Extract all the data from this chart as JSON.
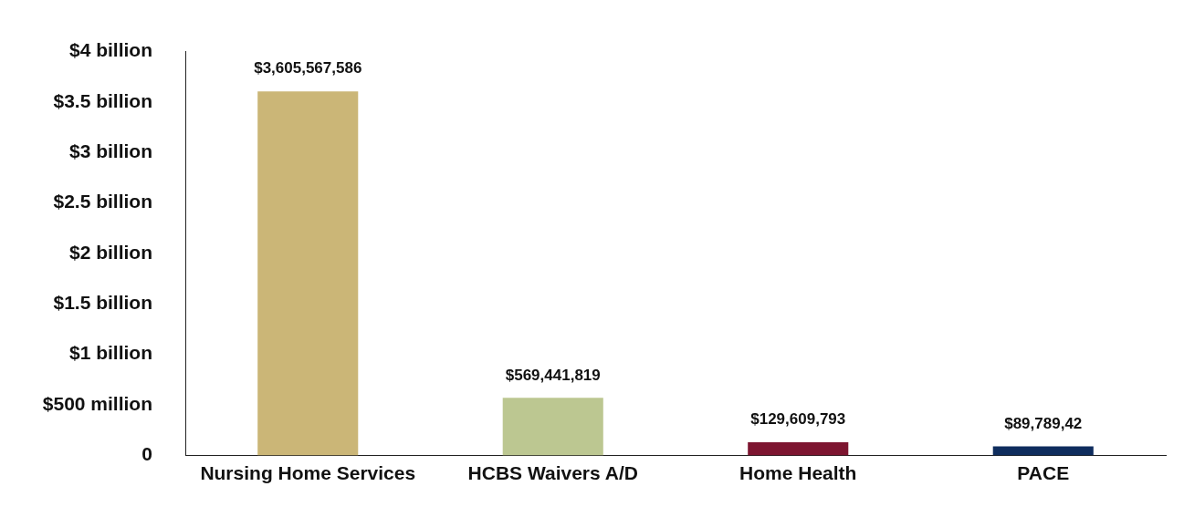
{
  "chart_data": {
    "type": "bar",
    "categories": [
      "Nursing Home Services",
      "HCBS Waivers A/D",
      "Home Health",
      "PACE"
    ],
    "values": [
      3605567586,
      569441819,
      129609793,
      89789420
    ],
    "value_labels": [
      "$3,605,567,586",
      "$569,441,819",
      "$129,609,793",
      "$89,789,42"
    ],
    "colors": [
      "#cbb677",
      "#bcc791",
      "#7d1530",
      "#0f2d5e"
    ],
    "ylim": [
      0,
      4000000000
    ],
    "yticks": [
      {
        "value": 0,
        "label": "0"
      },
      {
        "value": 500000000,
        "label": "$500 million"
      },
      {
        "value": 1000000000,
        "label": "$1 billion"
      },
      {
        "value": 1500000000,
        "label": "$1.5 billion"
      },
      {
        "value": 2000000000,
        "label": "$2 billion"
      },
      {
        "value": 2500000000,
        "label": "$2.5 billion"
      },
      {
        "value": 3000000000,
        "label": "$3 billion"
      },
      {
        "value": 3500000000,
        "label": "$3.5 billion"
      },
      {
        "value": 4000000000,
        "label": "$4 billion"
      }
    ],
    "grid": false,
    "legend": false
  }
}
